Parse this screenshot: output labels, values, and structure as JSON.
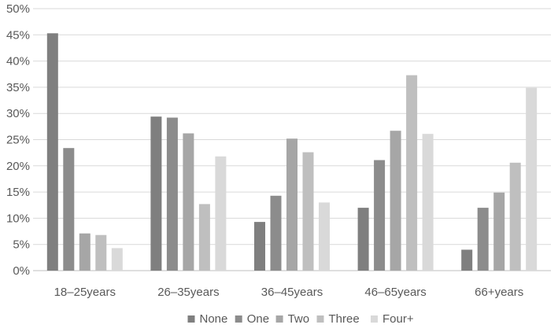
{
  "chart_data": {
    "type": "bar",
    "title": "",
    "xlabel": "",
    "ylabel": "",
    "ylim": [
      0,
      50
    ],
    "ytick_step": 5,
    "ytick_format": "percent",
    "grid": true,
    "legend_position": "bottom",
    "categories": [
      "18–25years",
      "26–35years",
      "36–45years",
      "46–65years",
      "66+years"
    ],
    "series": [
      {
        "name": "None",
        "color": "#7f7f7f",
        "values": [
          45.3,
          29.4,
          9.3,
          12.0,
          4.0
        ]
      },
      {
        "name": "One",
        "color": "#8c8c8c",
        "values": [
          23.4,
          29.2,
          14.3,
          21.1,
          12.0
        ]
      },
      {
        "name": "Two",
        "color": "#a6a6a6",
        "values": [
          7.1,
          26.2,
          25.2,
          26.7,
          14.9
        ]
      },
      {
        "name": "Three",
        "color": "#bfbfbf",
        "values": [
          6.8,
          12.7,
          22.6,
          37.3,
          20.6
        ]
      },
      {
        "name": "Four+",
        "color": "#d9d9d9",
        "values": [
          4.3,
          21.8,
          13.0,
          26.1,
          34.9
        ]
      }
    ]
  }
}
